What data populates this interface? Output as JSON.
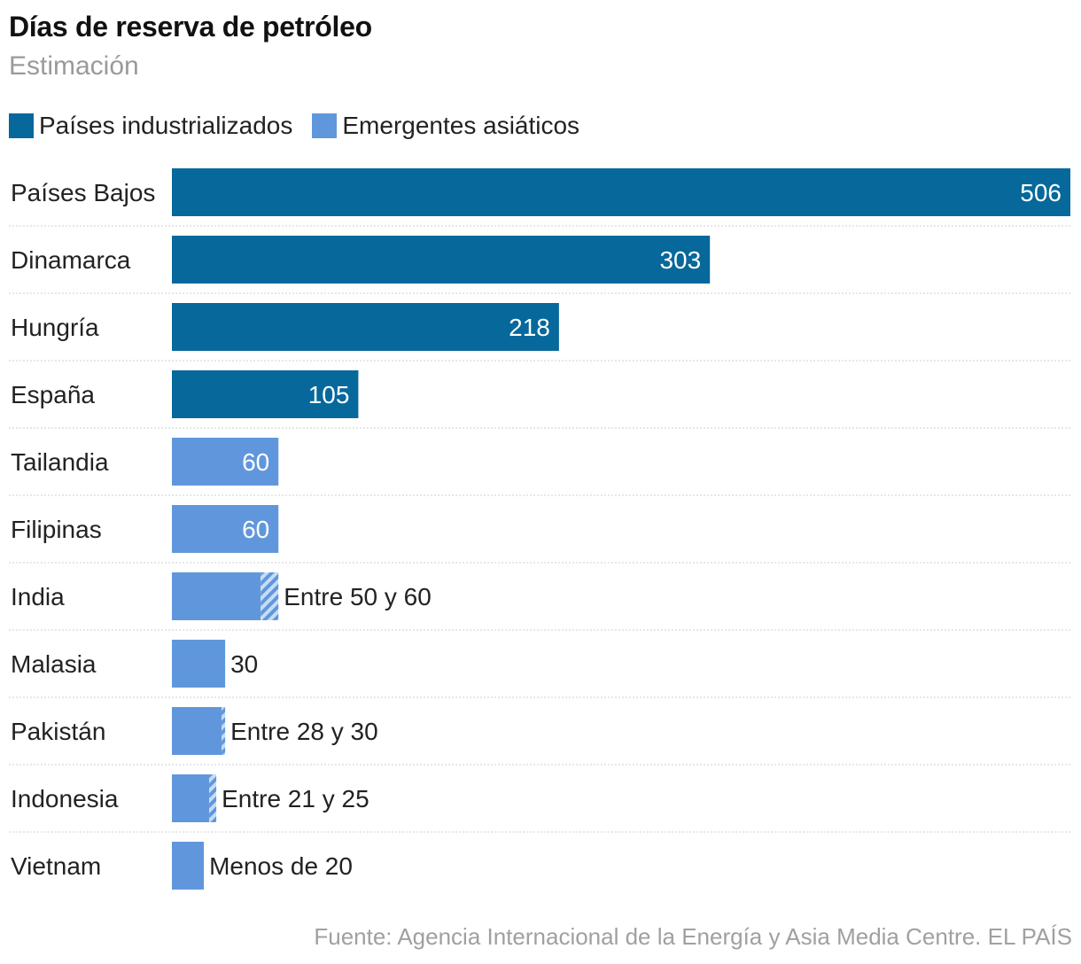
{
  "header": {
    "title": "Días de reserva de petróleo",
    "subtitle": "Estimación"
  },
  "legend": [
    {
      "label": "Países industrializados",
      "color": "#06689b"
    },
    {
      "label": "Emergentes asiáticos",
      "color": "#6097dc"
    }
  ],
  "colors": {
    "industrializados": "#06689b",
    "emergentes": "#6097dc",
    "hatch_light": "#c7dcf5",
    "grid": "#cfcfcf"
  },
  "chart_data": {
    "type": "bar",
    "orientation": "horizontal",
    "title": "Días de reserva de petróleo",
    "subtitle": "Estimación",
    "xlim": [
      0,
      506
    ],
    "grid": false,
    "legend_position": "top-left",
    "categories": [
      "Países Bajos",
      "Dinamarca",
      "Hungría",
      "España",
      "Tailandia",
      "Filipinas",
      "India",
      "Malasia",
      "Pakistán",
      "Indonesia",
      "Vietnam"
    ],
    "series": [
      {
        "name": "Países industrializados",
        "group": "industrializados"
      },
      {
        "name": "Emergentes asiáticos",
        "group": "emergentes"
      }
    ],
    "bars": [
      {
        "category": "Países Bajos",
        "group": "industrializados",
        "value": 506,
        "label": "506",
        "label_inside": true
      },
      {
        "category": "Dinamarca",
        "group": "industrializados",
        "value": 303,
        "label": "303",
        "label_inside": true
      },
      {
        "category": "Hungría",
        "group": "industrializados",
        "value": 218,
        "label": "218",
        "label_inside": true
      },
      {
        "category": "España",
        "group": "industrializados",
        "value": 105,
        "label": "105",
        "label_inside": true
      },
      {
        "category": "Tailandia",
        "group": "emergentes",
        "value": 60,
        "label": "60",
        "label_inside": true
      },
      {
        "category": "Filipinas",
        "group": "emergentes",
        "value": 60,
        "label": "60",
        "label_inside": true
      },
      {
        "category": "India",
        "group": "emergentes",
        "value": 50,
        "range_max": 60,
        "label": "Entre 50 y 60",
        "label_inside": false
      },
      {
        "category": "Malasia",
        "group": "emergentes",
        "value": 30,
        "label": "30",
        "label_inside": false
      },
      {
        "category": "Pakistán",
        "group": "emergentes",
        "value": 28,
        "range_max": 30,
        "label": "Entre 28 y 30",
        "label_inside": false
      },
      {
        "category": "Indonesia",
        "group": "emergentes",
        "value": 21,
        "range_max": 25,
        "label": "Entre 21 y 25",
        "label_inside": false
      },
      {
        "category": "Vietnam",
        "group": "emergentes",
        "value": 18,
        "label": "Menos de 20",
        "label_inside": false
      }
    ]
  },
  "footer": {
    "source": "Fuente: Agencia Internacional de la Energía y Asia Media Centre. EL PAÍS"
  }
}
